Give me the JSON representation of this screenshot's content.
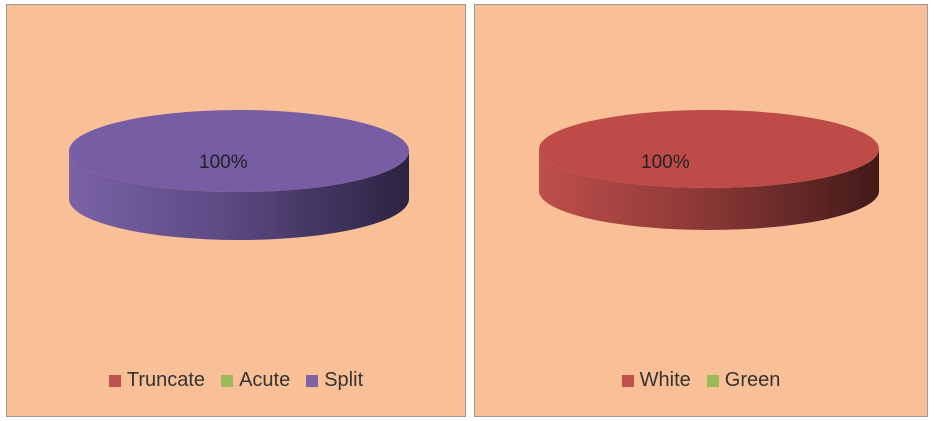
{
  "chart_data": [
    {
      "type": "pie",
      "title": "",
      "categories": [
        "Truncate",
        "Acute",
        "Split"
      ],
      "values": [
        0,
        0,
        100
      ],
      "colors": [
        "#c0504d",
        "#9bbb59",
        "#8064a2"
      ],
      "data_label": "100%",
      "legend": "bottom"
    },
    {
      "type": "pie",
      "title": "",
      "categories": [
        "White",
        "Green"
      ],
      "values": [
        100,
        0
      ],
      "colors": [
        "#c0504d",
        "#9bbb59"
      ],
      "data_label": "100%",
      "legend": "bottom"
    }
  ]
}
